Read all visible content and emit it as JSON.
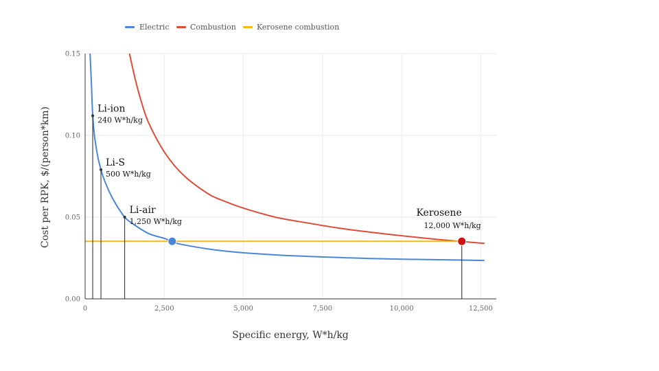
{
  "chart_data": {
    "type": "line",
    "title": "",
    "xlabel": "Specific energy, W*h/kg",
    "ylabel": "Cost per RPK, $/(person*km)",
    "xlim": [
      0,
      13000
    ],
    "ylim": [
      0,
      0.15
    ],
    "x_ticks": [
      0,
      2500,
      5000,
      7500,
      10000,
      12500
    ],
    "x_tick_labels": [
      "0",
      "2,500",
      "5,000",
      "7,500",
      "10,000",
      "12,500"
    ],
    "y_ticks": [
      0,
      0.05,
      0.1,
      0.15
    ],
    "y_tick_labels": [
      "0.00",
      "0.05",
      "0.10",
      "0.15"
    ],
    "grid": true,
    "legend_position": "top-left",
    "series": [
      {
        "name": "Electric",
        "color": "#4a86d8",
        "x": [
          150,
          200,
          240,
          300,
          400,
          500,
          600,
          800,
          1000,
          1250,
          1500,
          2000,
          2500,
          2750,
          3000,
          4000,
          5000,
          6000,
          7000,
          8000,
          9000,
          10000,
          11000,
          12000,
          12600
        ],
        "y": [
          0.153,
          0.131,
          0.112,
          0.099,
          0.087,
          0.079,
          0.073,
          0.064,
          0.057,
          0.05,
          0.046,
          0.04,
          0.037,
          0.035,
          0.0335,
          0.0302,
          0.0282,
          0.0269,
          0.026,
          0.0253,
          0.0247,
          0.0243,
          0.024,
          0.0237,
          0.0235
        ]
      },
      {
        "name": "Combustion",
        "color": "#dd4b39",
        "x": [
          1400,
          1600,
          1800,
          2000,
          2400,
          2800,
          3200,
          3600,
          4000,
          4500,
          5000,
          6000,
          7000,
          8000,
          9000,
          10000,
          11000,
          12000,
          12600
        ],
        "y": [
          0.15,
          0.133,
          0.119,
          0.108,
          0.093,
          0.082,
          0.074,
          0.068,
          0.063,
          0.059,
          0.0555,
          0.05,
          0.0465,
          0.0433,
          0.0408,
          0.0386,
          0.0366,
          0.0349,
          0.0339
        ]
      },
      {
        "name": "Kerosene combustion",
        "color": "#f2b90f",
        "x": [
          0,
          11900
        ],
        "y": [
          0.0352,
          0.0352
        ]
      }
    ],
    "markers": [
      {
        "x": 2750,
        "y": 0.0352,
        "color": "#4a86d8",
        "name": "electric-breakeven-point"
      },
      {
        "x": 11900,
        "y": 0.0352,
        "color": "#cc1111",
        "name": "kerosene-point"
      }
    ],
    "annotations": [
      {
        "key": "li_ion",
        "title": "Li-ion",
        "subtitle": "240 W*h/kg",
        "x": 240,
        "y": 0.112,
        "anchor": "start"
      },
      {
        "key": "li_s",
        "title": "Li-S",
        "subtitle": "500 W*h/kg",
        "x": 500,
        "y": 0.079,
        "anchor": "start"
      },
      {
        "key": "li_air",
        "title": "Li-air",
        "subtitle": "1,250 W*h/kg",
        "x": 1250,
        "y": 0.05,
        "anchor": "start"
      },
      {
        "key": "kerosene",
        "title": "Kerosene",
        "subtitle": "12,000 W*h/kg",
        "x": 11900,
        "y": 0.0352,
        "anchor": "end"
      }
    ]
  }
}
